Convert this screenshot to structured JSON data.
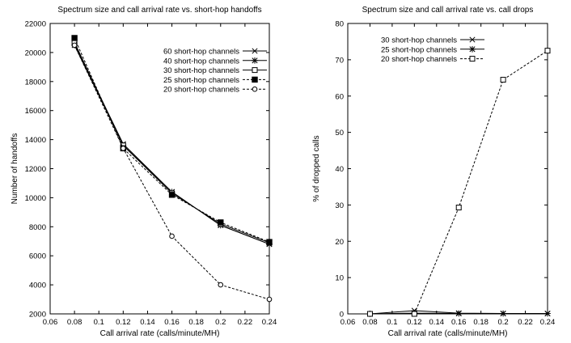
{
  "chart_data": [
    {
      "type": "line",
      "title": "Spectrum size and call arrival rate vs. short-hop handoffs",
      "xlabel": "Call arrival rate (calls/minute/MH)",
      "ylabel": "Number of handoffs",
      "xlim": [
        0.06,
        0.24
      ],
      "ylim": [
        2000,
        22000
      ],
      "xticks": [
        0.06,
        0.08,
        0.1,
        0.12,
        0.14,
        0.16,
        0.18,
        0.2,
        0.22,
        0.24
      ],
      "xtick_labels": [
        "0.06",
        "0.08",
        "0.1",
        "0.12",
        "0.14",
        "0.16",
        "0.18",
        "0.2",
        "0.22",
        "0.24"
      ],
      "yticks": [
        2000,
        4000,
        6000,
        8000,
        10000,
        12000,
        14000,
        16000,
        18000,
        20000,
        22000
      ],
      "ytick_labels": [
        "2000",
        "4000",
        "6000",
        "8000",
        "10000",
        "12000",
        "14000",
        "16000",
        "18000",
        "20000",
        "22000"
      ],
      "grid": false,
      "legend_position": "top-right",
      "x": [
        0.08,
        0.12,
        0.16,
        0.2,
        0.24
      ],
      "series": [
        {
          "name": "60 short-hop channels",
          "values": [
            20600,
            13700,
            10400,
            8100,
            6800
          ],
          "marker": "x",
          "dash": "solid"
        },
        {
          "name": "40 short-hop channels",
          "values": [
            20500,
            13600,
            10400,
            8100,
            6800
          ],
          "marker": "star",
          "dash": "solid"
        },
        {
          "name": "30 short-hop channels",
          "values": [
            20700,
            13600,
            10300,
            8200,
            6900
          ],
          "marker": "square-open",
          "dash": "solid"
        },
        {
          "name": "25 short-hop channels",
          "values": [
            21000,
            13400,
            10200,
            8300,
            6950
          ],
          "marker": "square-filled",
          "dash": "dashed"
        },
        {
          "name": "20 short-hop channels",
          "values": [
            20500,
            13400,
            7350,
            4000,
            3000
          ],
          "marker": "circle-open",
          "dash": "dashed"
        }
      ]
    },
    {
      "type": "line",
      "title": "Spectrum size and call arrival rate vs. call drops",
      "xlabel": "Call arrival rate (calls/minute/MH)",
      "ylabel": "% of dropped calls",
      "xlim": [
        0.06,
        0.24
      ],
      "ylim": [
        0,
        80
      ],
      "xticks": [
        0.06,
        0.08,
        0.1,
        0.12,
        0.14,
        0.16,
        0.18,
        0.2,
        0.22,
        0.24
      ],
      "xtick_labels": [
        "0.06",
        "0.08",
        "0.1",
        "0.12",
        "0.14",
        "0.16",
        "0.18",
        "0.2",
        "0.22",
        "0.24"
      ],
      "yticks": [
        0,
        10,
        20,
        30,
        40,
        50,
        60,
        70,
        80
      ],
      "ytick_labels": [
        "0",
        "10",
        "20",
        "30",
        "40",
        "50",
        "60",
        "70",
        "80"
      ],
      "grid": false,
      "legend_position": "top-left",
      "x": [
        0.08,
        0.12,
        0.16,
        0.2,
        0.24
      ],
      "series": [
        {
          "name": "30 short-hop channels",
          "values": [
            0,
            0.9,
            0.2,
            0.1,
            0.1
          ],
          "marker": "x",
          "dash": "solid"
        },
        {
          "name": "25 short-hop channels",
          "values": [
            0,
            0.2,
            0.1,
            0.1,
            0.1
          ],
          "marker": "star",
          "dash": "solid"
        },
        {
          "name": "20 short-hop channels",
          "values": [
            0,
            0,
            29.3,
            64.5,
            72.5
          ],
          "marker": "square-open",
          "dash": "dashed"
        }
      ]
    }
  ]
}
